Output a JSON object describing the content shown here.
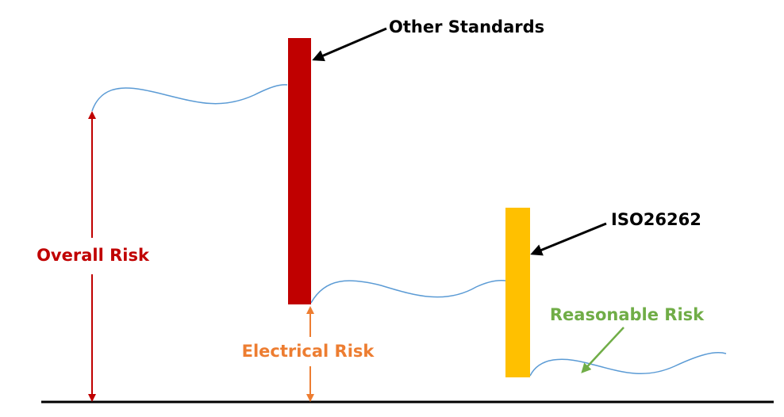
{
  "labels": {
    "other_standards": "Other Standards",
    "iso": "ISO26262",
    "overall_risk": "Overall Risk",
    "electrical_risk": "Electrical Risk",
    "reasonable_risk": "Reasonable Risk"
  }
}
